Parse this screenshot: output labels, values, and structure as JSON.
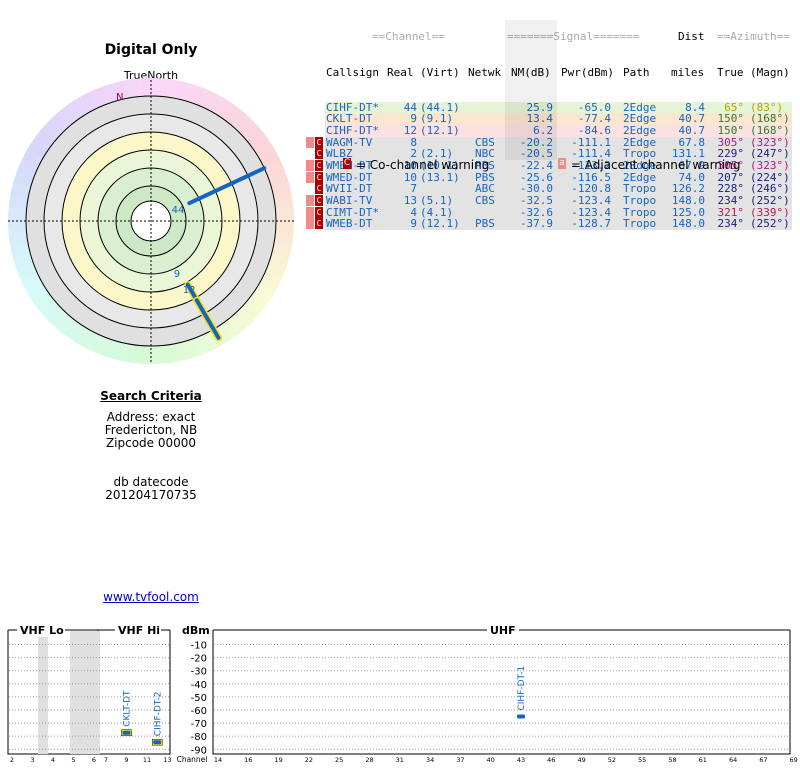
{
  "page": {
    "title": "Digital Only",
    "true_north": "TrueNorth",
    "north_marker": "N",
    "website": "www.tvfool.com"
  },
  "search": {
    "heading": "Search Criteria",
    "address": "Address: exact",
    "city": "Fredericton, NB",
    "zipcode": "Zipcode 00000",
    "db_label": "db datecode",
    "db_value": "201204170735"
  },
  "table": {
    "group_headers": {
      "channel": "==Channel==",
      "signal": "=======Signal=======",
      "dist": "Dist",
      "azimuth": "==Azimuth=="
    },
    "columns": {
      "callsign": "Callsign",
      "real": "Real",
      "virt": "(Virt)",
      "netwk": "Netwk",
      "nm": "NM(dB)",
      "pwr": "Pwr(dBm)",
      "path": "Path",
      "miles": "miles",
      "true": "True",
      "magn": "(Magn)"
    },
    "rows": [
      {
        "callsign": "CIHF-DT*",
        "real": "44",
        "virt": "(44.1)",
        "netwk": "",
        "nm": "25.9",
        "pwr": "-65.0",
        "path": "2Edge",
        "dist": "8.4",
        "true": "65°",
        "magn": "(83°)",
        "flags": "",
        "bg": "#e6f4d6",
        "azcolor": "#b5a600"
      },
      {
        "callsign": "CKLT-DT",
        "real": "9",
        "virt": "(9.1)",
        "netwk": "",
        "nm": "13.4",
        "pwr": "-77.4",
        "path": "2Edge",
        "dist": "40.7",
        "true": "150°",
        "magn": "(168°)",
        "flags": "",
        "bg": "#fbe6cf",
        "azcolor": "#2e7d32"
      },
      {
        "callsign": "CIHF-DT*",
        "real": "12",
        "virt": "(12.1)",
        "netwk": "",
        "nm": "6.2",
        "pwr": "-84.6",
        "path": "2Edge",
        "dist": "40.7",
        "true": "150°",
        "magn": "(168°)",
        "flags": "",
        "bg": "#fbe1e1",
        "azcolor": "#2e7d32"
      },
      {
        "callsign": "WAGM-TV",
        "real": "8",
        "virt": "",
        "netwk": "CBS",
        "nm": "-20.2",
        "pwr": "-111.1",
        "path": "2Edge",
        "dist": "67.8",
        "true": "305°",
        "magn": "(323°)",
        "flags": "AC",
        "bg": "#e3e3e3",
        "azcolor": "#b0158a"
      },
      {
        "callsign": "WLBZ",
        "real": "2",
        "virt": "(2.1)",
        "netwk": "NBC",
        "nm": "-20.5",
        "pwr": "-111.4",
        "path": "Tropo",
        "dist": "131.1",
        "true": "229°",
        "magn": "(247°)",
        "flags": "C",
        "bg": "#e3e3e3",
        "azcolor": "#1a237e"
      },
      {
        "callsign": "WMEM-DT",
        "real": "10",
        "virt": "(10.1)",
        "netwk": "PBS",
        "nm": "-22.4",
        "pwr": "-113.2",
        "path": "2Edge",
        "dist": "67.9",
        "true": "305°",
        "magn": "(323°)",
        "flags": "AC",
        "bg": "#e3e3e3",
        "azcolor": "#b0158a"
      },
      {
        "callsign": "WMED-DT",
        "real": "10",
        "virt": "(13.1)",
        "netwk": "PBS",
        "nm": "-25.6",
        "pwr": "-116.5",
        "path": "2Edge",
        "dist": "74.0",
        "true": "207°",
        "magn": "(224°)",
        "flags": "AC",
        "bg": "#e3e3e3",
        "azcolor": "#1a237e"
      },
      {
        "callsign": "WVII-DT",
        "real": "7",
        "virt": "",
        "netwk": "ABC",
        "nm": "-30.0",
        "pwr": "-120.8",
        "path": "Tropo",
        "dist": "126.2",
        "true": "228°",
        "magn": "(246°)",
        "flags": "C",
        "bg": "#e3e3e3",
        "azcolor": "#1a237e"
      },
      {
        "callsign": "WABI-TV",
        "real": "13",
        "virt": "(5.1)",
        "netwk": "CBS",
        "nm": "-32.5",
        "pwr": "-123.4",
        "path": "Tropo",
        "dist": "148.0",
        "true": "234°",
        "magn": "(252°)",
        "flags": "AC",
        "bg": "#e3e3e3",
        "azcolor": "#1a237e"
      },
      {
        "callsign": "CIMT-DT*",
        "real": "4",
        "virt": "(4.1)",
        "netwk": "",
        "nm": "-32.6",
        "pwr": "-123.4",
        "path": "Tropo",
        "dist": "125.0",
        "true": "321°",
        "magn": "(339°)",
        "flags": "AC",
        "bg": "#e3e3e3",
        "azcolor": "#c2185b"
      },
      {
        "callsign": "WMEB-DT",
        "real": "9",
        "virt": "(12.1)",
        "netwk": "PBS",
        "nm": "-37.9",
        "pwr": "-128.7",
        "path": "Tropo",
        "dist": "148.0",
        "true": "234°",
        "magn": "(252°)",
        "flags": "AC",
        "bg": "#e3e3e3",
        "azcolor": "#1a237e"
      }
    ]
  },
  "legend": {
    "co_glyph": "C",
    "co_text": "= Co-channel warning",
    "adj_glyph": "a",
    "adj_text": "= Adjacent channel warning"
  },
  "radar": {
    "stations": [
      {
        "label": "44",
        "azimuth": 65,
        "signal": 25.9,
        "color": "#1565c0",
        "outline": ""
      },
      {
        "label": "9",
        "azimuth": 150,
        "signal": 13.4,
        "color": "#1565c0",
        "outline": "#f5e21b"
      },
      {
        "label": "12",
        "azimuth": 150,
        "signal": 6.2,
        "color": "#1565c0",
        "outline": "#f5e21b"
      }
    ]
  },
  "spectrum": {
    "sections": {
      "vhf_lo": "VHF Lo",
      "vhf_hi": "VHF Hi",
      "dbm": "dBm",
      "uhf": "UHF"
    },
    "dbm_ticks": [
      "-10",
      "-20",
      "-30",
      "-40",
      "-50",
      "-60",
      "-70",
      "-80",
      "-90"
    ],
    "channel_label": "Channel",
    "vhf_lo_ticks": [
      "2",
      "3",
      "4",
      "5",
      "6"
    ],
    "vhf_hi_ticks": [
      "7",
      "9",
      "11",
      "13"
    ],
    "uhf_ticks": [
      "14",
      "16",
      "19",
      "22",
      "25",
      "28",
      "31",
      "34",
      "37",
      "40",
      "43",
      "46",
      "49",
      "52",
      "55",
      "58",
      "61",
      "64",
      "67",
      "69"
    ],
    "stations": [
      {
        "label": "CKLT-DT",
        "channel": 9,
        "dbm": -77.4,
        "band": "hi"
      },
      {
        "label": "CIHF-DT-2",
        "channel": 12,
        "dbm": -84.6,
        "band": "hi"
      },
      {
        "label": "CIHF-DT-1",
        "channel": 44,
        "dbm": -65.0,
        "band": "uhf"
      }
    ]
  }
}
